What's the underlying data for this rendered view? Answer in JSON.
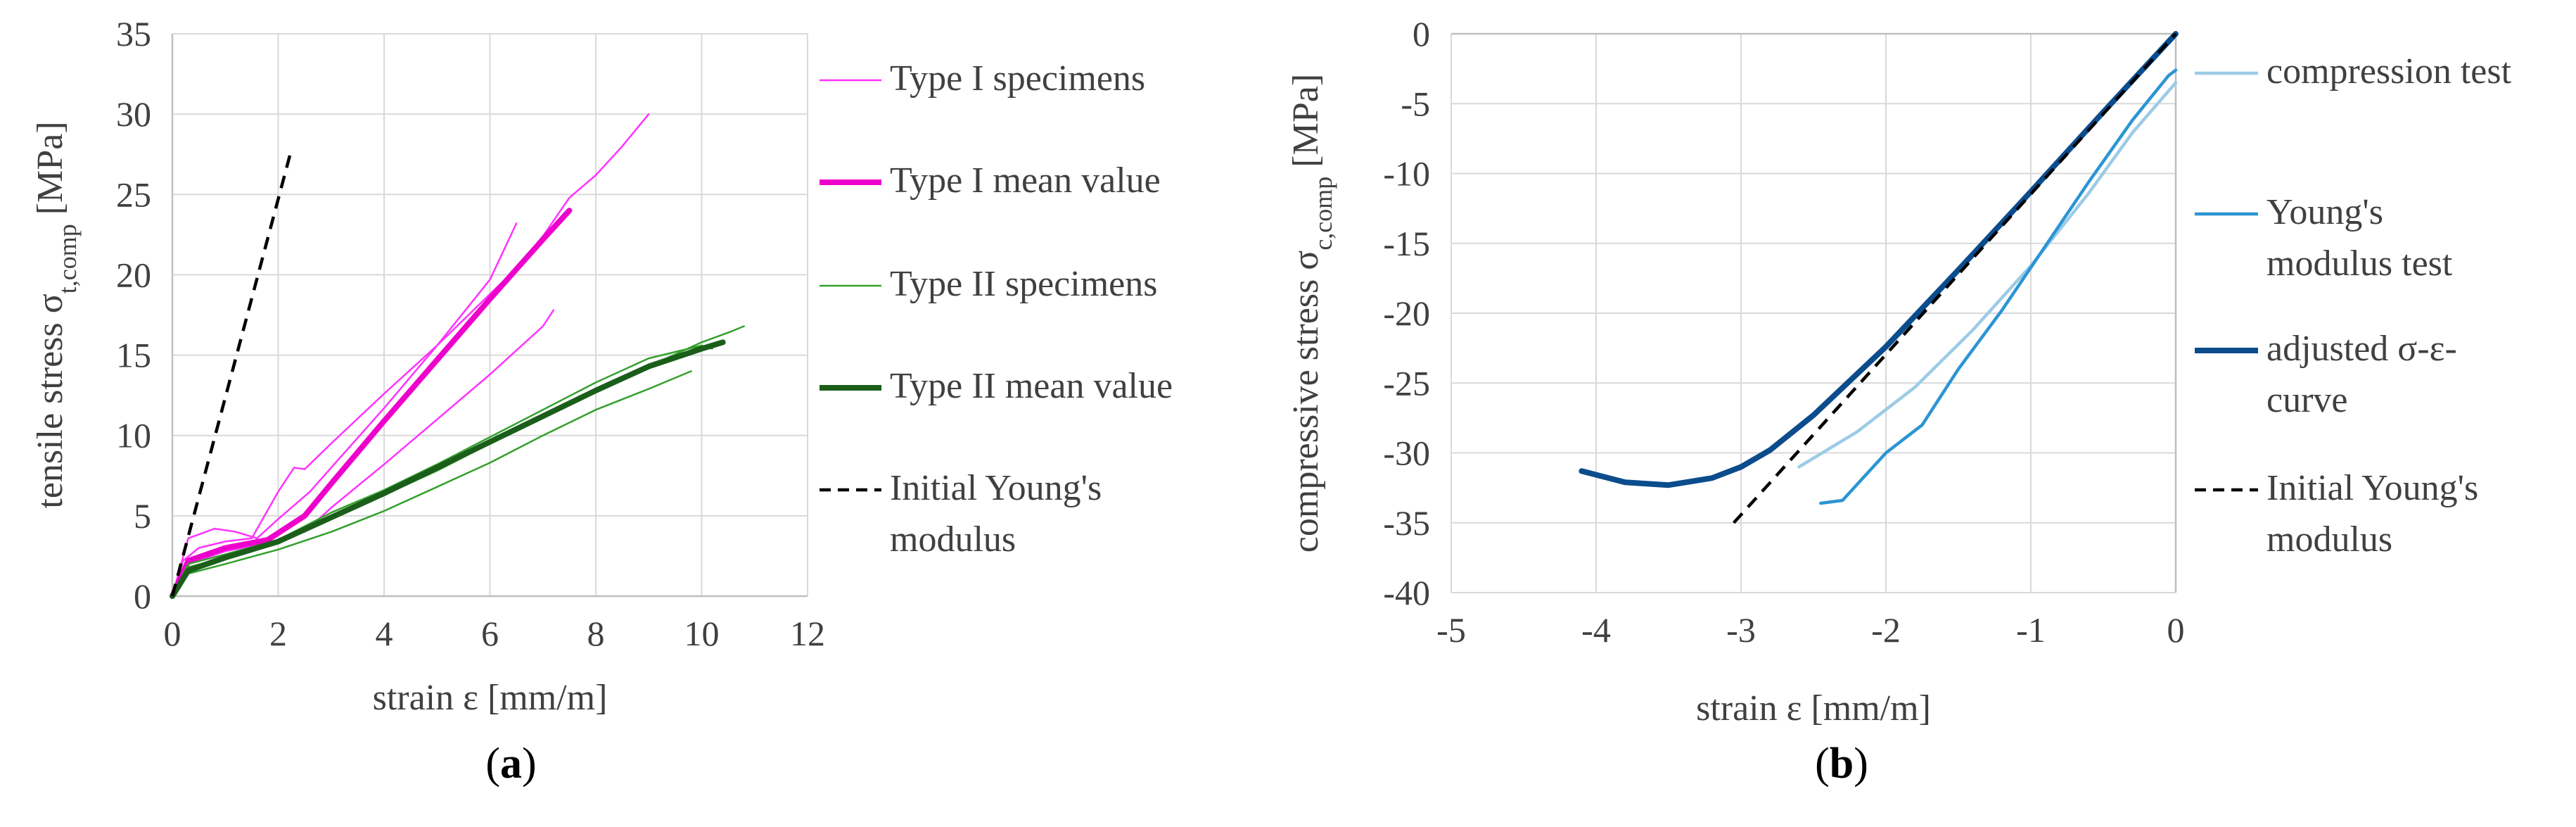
{
  "colors": {
    "type1_specimens": "#ff33ff",
    "type1_mean": "#ee00cc",
    "type2_specimens": "#33a02c",
    "type2_mean": "#1a5e1a",
    "initial_modulus": "#000000",
    "compression_test": "#9ccbe6",
    "youngs_modulus_test": "#2b95d3",
    "adjusted_curve": "#0b4c8c",
    "grid": "#d9d9d9"
  },
  "chart_data": [
    {
      "id": "a",
      "type": "line",
      "panel_label": {
        "open": "(",
        "letter": "a",
        "close": ")"
      },
      "xlabel": "strain ε [mm/m]",
      "ylabel": {
        "main": "tensile stress σ",
        "sub": "t,comp",
        "unit": " [MPa]"
      },
      "xlim": [
        0,
        12
      ],
      "ylim": [
        0,
        35
      ],
      "xticks": [
        0,
        2,
        4,
        6,
        8,
        10,
        12
      ],
      "yticks": [
        0,
        5,
        10,
        15,
        20,
        25,
        30,
        35
      ],
      "grid": true,
      "legend_position": "right",
      "legend": [
        {
          "label": "Type I specimens",
          "lines": [
            "Type I specimens"
          ],
          "color_key": "type1_specimens",
          "style": "solid",
          "width": "thin"
        },
        {
          "label": "Type I mean value",
          "lines": [
            "Type I mean value"
          ],
          "color_key": "type1_mean",
          "style": "solid",
          "width": "thick"
        },
        {
          "label": "Type II specimens",
          "lines": [
            "Type II specimens"
          ],
          "color_key": "type2_specimens",
          "style": "solid",
          "width": "thin"
        },
        {
          "label": "Type II mean value",
          "lines": [
            "Type II mean value"
          ],
          "color_key": "type2_mean",
          "style": "solid",
          "width": "thick"
        },
        {
          "label": "Initial Young's modulus",
          "lines": [
            "Initial Young's",
            "modulus"
          ],
          "color_key": "initial_modulus",
          "style": "dashed",
          "width": "medium"
        }
      ],
      "series": [
        {
          "name": "Type I specimen 1",
          "color_key": "type1_specimens",
          "width": "thin",
          "style": "solid",
          "x": [
            0,
            0.2,
            0.5,
            1.0,
            1.5,
            2.0,
            2.3,
            2.5,
            3,
            4,
            5,
            6,
            6.5,
            7.0,
            7.5,
            8.0,
            8.5,
            9.0
          ],
          "y": [
            0,
            2.2,
            3.0,
            3.4,
            3.6,
            6.5,
            8.0,
            7.9,
            9.5,
            12.6,
            15.6,
            18.8,
            20.4,
            22.4,
            24.8,
            26.2,
            28.0,
            30.0
          ]
        },
        {
          "name": "Type I specimen 2",
          "color_key": "type1_specimens",
          "width": "thin",
          "style": "solid",
          "x": [
            0,
            0.3,
            0.8,
            1.2,
            1.6,
            2.0,
            2.6,
            3,
            4,
            5,
            6,
            6.5
          ],
          "y": [
            0,
            3.6,
            4.2,
            4.0,
            3.6,
            4.8,
            6.5,
            8.0,
            11.7,
            15.6,
            19.7,
            23.2
          ]
        },
        {
          "name": "Type I specimen 3",
          "color_key": "type1_specimens",
          "width": "thin",
          "style": "solid",
          "x": [
            0,
            0.3,
            1.0,
            1.8,
            2.5,
            3,
            4,
            5,
            6,
            7,
            7.2
          ],
          "y": [
            0,
            2.0,
            2.8,
            3.3,
            4.0,
            5.5,
            8.2,
            11.0,
            13.8,
            16.8,
            17.8
          ]
        },
        {
          "name": "Type I mean value",
          "color_key": "type1_mean",
          "width": "thick",
          "style": "solid",
          "x": [
            0,
            0.3,
            1.0,
            1.8,
            2.5,
            3,
            4,
            5,
            6,
            7,
            7.5
          ],
          "y": [
            0,
            2.2,
            3.0,
            3.5,
            5.0,
            7.0,
            10.9,
            14.7,
            18.5,
            22.2,
            24.0
          ]
        },
        {
          "name": "Type II specimen 1",
          "color_key": "type2_specimens",
          "width": "thin",
          "style": "solid",
          "x": [
            0,
            0.3,
            1,
            2,
            3,
            4,
            5,
            6,
            7,
            8,
            9,
            10,
            10.5,
            10.8
          ],
          "y": [
            0,
            1.8,
            2.4,
            3.4,
            4.8,
            6.3,
            7.8,
            9.5,
            11.1,
            12.8,
            14.3,
            15.8,
            16.4,
            16.8
          ]
        },
        {
          "name": "Type II specimen 2",
          "color_key": "type2_specimens",
          "width": "thin",
          "style": "solid",
          "x": [
            0,
            0.3,
            1,
            2,
            3,
            4,
            5,
            6,
            7,
            8,
            9,
            9.8
          ],
          "y": [
            0,
            1.4,
            2.0,
            2.9,
            4.0,
            5.3,
            6.8,
            8.3,
            10.0,
            11.6,
            12.9,
            14.0
          ]
        },
        {
          "name": "Type II specimen 3",
          "color_key": "type2_specimens",
          "width": "thin",
          "style": "solid",
          "x": [
            0,
            0.3,
            1,
            2,
            3,
            4,
            5,
            6,
            7,
            8,
            9,
            10,
            10.2
          ],
          "y": [
            0,
            2.0,
            2.6,
            3.5,
            5.2,
            6.6,
            8.2,
            9.9,
            11.6,
            13.3,
            14.8,
            15.6,
            15.4
          ]
        },
        {
          "name": "Type II mean value",
          "color_key": "type2_mean",
          "width": "thick",
          "style": "solid",
          "x": [
            0,
            0.3,
            1,
            2,
            3,
            4,
            5,
            6,
            7,
            8,
            9,
            10,
            10.4
          ],
          "y": [
            0,
            1.6,
            2.4,
            3.4,
            4.9,
            6.4,
            8.0,
            9.6,
            11.2,
            12.8,
            14.3,
            15.4,
            15.8
          ]
        },
        {
          "name": "Initial Young's modulus",
          "color_key": "initial_modulus",
          "width": "medium",
          "style": "dashed",
          "x": [
            0,
            2.25
          ],
          "y": [
            0,
            27.8
          ]
        }
      ]
    },
    {
      "id": "b",
      "type": "line",
      "panel_label": {
        "open": "(",
        "letter": "b",
        "close": ")"
      },
      "xlabel": "strain ε [mm/m]",
      "ylabel": {
        "main": "compressive stress σ",
        "sub": "c,comp",
        "unit": " [MPa]"
      },
      "xlim": [
        -5,
        0
      ],
      "ylim": [
        -40,
        0
      ],
      "xticks": [
        -5,
        -4,
        -3,
        -2,
        -1,
        0
      ],
      "yticks": [
        0,
        -5,
        -10,
        -15,
        -20,
        -25,
        -30,
        -35,
        -40
      ],
      "grid": true,
      "legend_position": "right",
      "legend": [
        {
          "label": "compression test",
          "lines": [
            "compression test"
          ],
          "color_key": "compression_test",
          "style": "solid",
          "width": "medium"
        },
        {
          "label": "Young's modulus test",
          "lines": [
            "Young's",
            "modulus test"
          ],
          "color_key": "youngs_modulus_test",
          "style": "solid",
          "width": "medium"
        },
        {
          "label": "adjusted σ-ε-curve",
          "lines": [
            "adjusted σ-ε-",
            "curve"
          ],
          "color_key": "adjusted_curve",
          "style": "solid",
          "width": "thick"
        },
        {
          "label": "Initial Young's modulus",
          "lines": [
            "Initial Young's",
            "modulus"
          ],
          "color_key": "initial_modulus",
          "style": "dashed",
          "width": "medium"
        }
      ],
      "series": [
        {
          "name": "compression test",
          "color_key": "compression_test",
          "width": "medium",
          "style": "solid",
          "x": [
            -2.6,
            -2.2,
            -1.8,
            -1.4,
            -1.0,
            -0.6,
            -0.3,
            0
          ],
          "y": [
            -31.0,
            -28.5,
            -25.3,
            -21.2,
            -16.6,
            -11.4,
            -7.1,
            -3.5
          ]
        },
        {
          "name": "Young's modulus test",
          "color_key": "youngs_modulus_test",
          "width": "medium",
          "style": "solid",
          "x": [
            -2.45,
            -2.3,
            -2.0,
            -1.8,
            -1.75,
            -1.5,
            -1.2,
            -0.9,
            -0.6,
            -0.3,
            -0.05,
            0
          ],
          "y": [
            -33.6,
            -33.4,
            -30.0,
            -28.4,
            -28.0,
            -24.0,
            -19.8,
            -15.2,
            -10.6,
            -6.2,
            -3.0,
            -2.6
          ]
        },
        {
          "name": "adjusted σ-ε-curve",
          "color_key": "adjusted_curve",
          "width": "thick",
          "style": "solid",
          "x": [
            -4.1,
            -3.8,
            -3.5,
            -3.2,
            -3.0,
            -2.8,
            -2.5,
            -2.0,
            -1.5,
            -1.0,
            -0.5,
            0
          ],
          "y": [
            -31.3,
            -32.1,
            -32.3,
            -31.8,
            -31.0,
            -29.8,
            -27.3,
            -22.4,
            -16.9,
            -11.3,
            -5.6,
            0
          ]
        },
        {
          "name": "Initial Young's modulus",
          "color_key": "initial_modulus",
          "width": "medium",
          "style": "dashed",
          "x": [
            -3.05,
            0
          ],
          "y": [
            -35.0,
            0
          ]
        }
      ]
    }
  ]
}
